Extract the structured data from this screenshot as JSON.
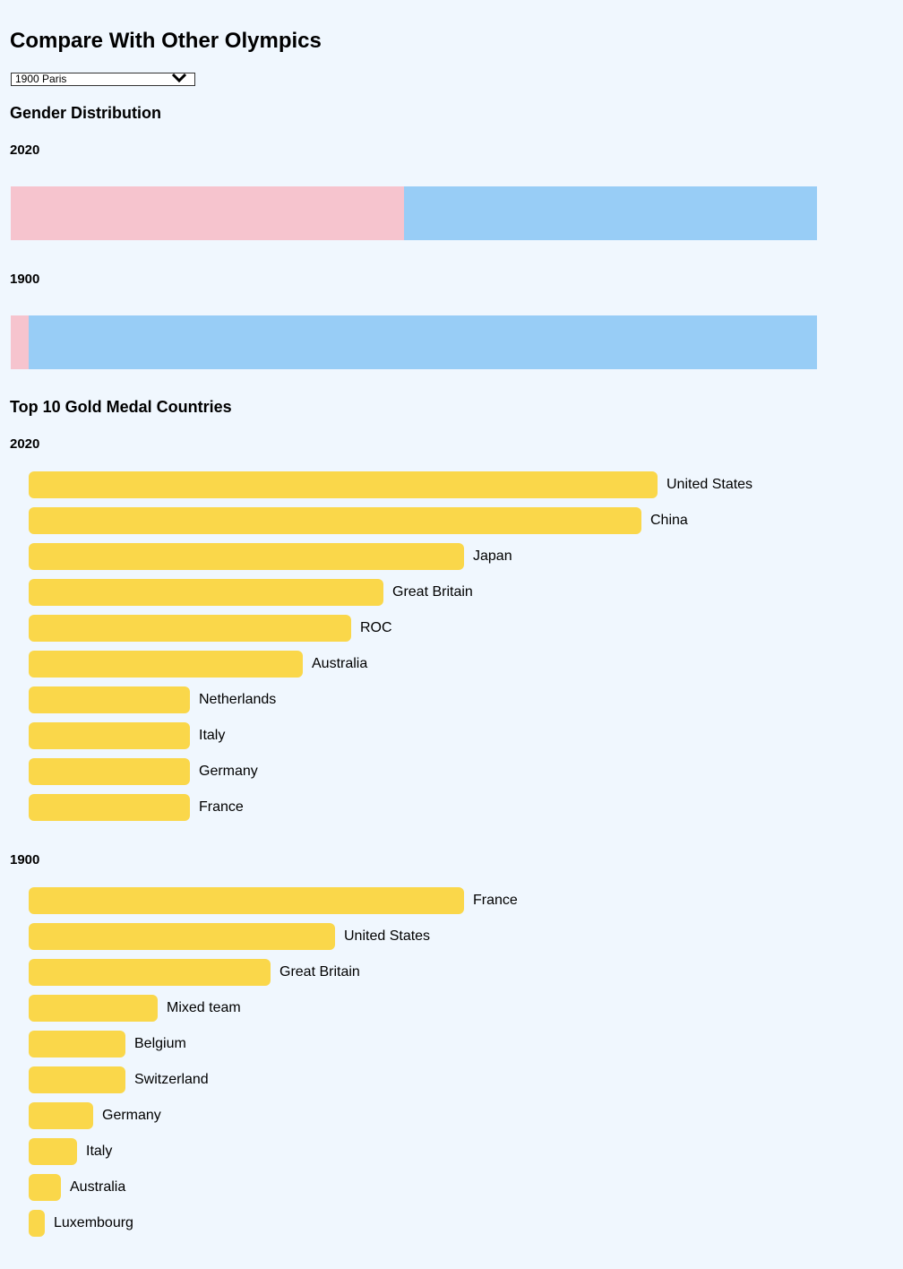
{
  "page": {
    "title": "Compare With Other Olympics",
    "selector": {
      "value": "1900 Paris"
    }
  },
  "gender": {
    "heading": "Gender Distribution",
    "years": [
      {
        "year": "2020",
        "female_share": 0.488,
        "colors": {
          "female": "#f6c4ce",
          "male": "#98cdf6"
        }
      },
      {
        "year": "1900",
        "female_share": 0.022,
        "colors": {
          "female": "#f6c4ce",
          "male": "#98cdf6"
        }
      }
    ]
  },
  "gold": {
    "heading": "Top 10 Gold Medal Countries",
    "bar_color": "#fad74a"
  },
  "chart_data": [
    {
      "type": "bar",
      "title": "2020",
      "orientation": "horizontal",
      "categories": [
        "United States",
        "China",
        "Japan",
        "Great Britain",
        "ROC",
        "Australia",
        "Netherlands",
        "Italy",
        "Germany",
        "France"
      ],
      "values": [
        39,
        38,
        27,
        22,
        20,
        17,
        10,
        10,
        10,
        10
      ]
    },
    {
      "type": "bar",
      "title": "1900",
      "orientation": "horizontal",
      "categories": [
        "France",
        "United States",
        "Great Britain",
        "Mixed team",
        "Belgium",
        "Switzerland",
        "Germany",
        "Italy",
        "Australia",
        "Luxembourg"
      ],
      "values": [
        27,
        19,
        15,
        8,
        6,
        6,
        4,
        3,
        2,
        1
      ]
    }
  ]
}
